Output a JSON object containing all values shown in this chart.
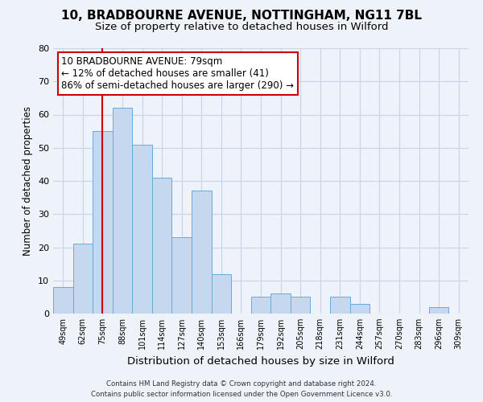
{
  "title": "10, BRADBOURNE AVENUE, NOTTINGHAM, NG11 7BL",
  "subtitle": "Size of property relative to detached houses in Wilford",
  "xlabel": "Distribution of detached houses by size in Wilford",
  "ylabel": "Number of detached properties",
  "categories": [
    "49sqm",
    "62sqm",
    "75sqm",
    "88sqm",
    "101sqm",
    "114sqm",
    "127sqm",
    "140sqm",
    "153sqm",
    "166sqm",
    "179sqm",
    "192sqm",
    "205sqm",
    "218sqm",
    "231sqm",
    "244sqm",
    "257sqm",
    "270sqm",
    "283sqm",
    "296sqm",
    "309sqm"
  ],
  "values": [
    8,
    21,
    55,
    62,
    51,
    41,
    23,
    37,
    12,
    0,
    5,
    6,
    5,
    0,
    5,
    3,
    0,
    0,
    0,
    2,
    0
  ],
  "bar_color": "#c5d8ef",
  "bar_edgecolor": "#6aabda",
  "vline_x": 2,
  "vline_color": "#cc0000",
  "annotation_text": "10 BRADBOURNE AVENUE: 79sqm\n← 12% of detached houses are smaller (41)\n86% of semi-detached houses are larger (290) →",
  "annotation_box_color": "#ffffff",
  "annotation_box_edgecolor": "#cc0000",
  "annotation_fontsize": 8.5,
  "ylim": [
    0,
    80
  ],
  "yticks": [
    0,
    10,
    20,
    30,
    40,
    50,
    60,
    70,
    80
  ],
  "title_fontsize": 11,
  "subtitle_fontsize": 9.5,
  "xlabel_fontsize": 9.5,
  "ylabel_fontsize": 8.5,
  "footer_line1": "Contains HM Land Registry data © Crown copyright and database right 2024.",
  "footer_line2": "Contains public sector information licensed under the Open Government Licence v3.0.",
  "background_color": "#eef2f9",
  "grid_color": "#c8d4e8"
}
